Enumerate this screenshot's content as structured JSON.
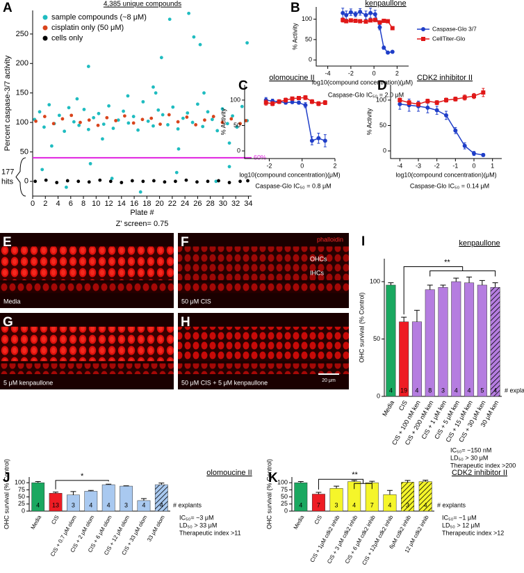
{
  "chart_data": [
    {
      "type": "scatter",
      "panel": "A",
      "title": "4,385 unique compounds",
      "xlabel": "Plate #",
      "ylabel": "Percent caspase-3/7 activity",
      "caption": "Z' screen= 0.75",
      "xlim": [
        0,
        34.5
      ],
      "xticks": [
        0,
        2,
        4,
        6,
        8,
        10,
        12,
        14,
        16,
        18,
        20,
        22,
        24,
        26,
        28,
        30,
        32,
        34
      ],
      "ylim": [
        -25,
        290
      ],
      "yticks": [
        0,
        50,
        100,
        150,
        200,
        250
      ],
      "threshold": 40,
      "threshold_color": "#e020e0",
      "threshold_label": "60%",
      "hits_count": "177",
      "hits_label": "hits",
      "legend": "upper left",
      "series": [
        {
          "name": "sample compounds (~8 μM)",
          "color": "#1fbcc0",
          "x": [
            0.3,
            1.1,
            1.8,
            2.6,
            3.4,
            4.2,
            5.0,
            5.7,
            6.5,
            7.3,
            8.1,
            8.8,
            9.6,
            10.4,
            11.2,
            12.0,
            12.7,
            13.5,
            14.3,
            15.1,
            15.9,
            16.6,
            17.4,
            18.2,
            19.0,
            19.8,
            20.5,
            21.3,
            22.1,
            22.9,
            23.7,
            24.4,
            25.2,
            26.0,
            26.8,
            27.6,
            28.3,
            29.1,
            29.9,
            30.7,
            31.5,
            32.2,
            33.0,
            33.8,
            8.8,
            19.4,
            20.3,
            21.6,
            24.6,
            25.4,
            26.4,
            33.8,
            1.5,
            5.3,
            9.1,
            12.5,
            17.0,
            22.7,
            28.9,
            31.0,
            3.0,
            7.0,
            11.0,
            15.0,
            19.0,
            23.0,
            27.0,
            31.0
          ],
          "values": [
            105,
            118,
            92,
            130,
            98,
            112,
            85,
            125,
            101,
            95,
            122,
            88,
            108,
            115,
            97,
            128,
            90,
            104,
            119,
            99,
            110,
            87,
            135,
            102,
            94,
            121,
            113,
            96,
            126,
            89,
            107,
            116,
            100,
            131,
            93,
            118,
            105,
            86,
            123,
            98,
            111,
            92,
            127,
            103,
            195,
            150,
            210,
            275,
            285,
            245,
            232,
            235,
            20,
            -10,
            30,
            5,
            -18,
            15,
            0,
            25,
            60,
            140,
            72,
            145,
            160,
            55,
            150,
            65
          ]
        },
        {
          "name": "cisplatin only (50 μM)",
          "color": "#d9441c",
          "x": [
            0.5,
            1.9,
            3.3,
            4.7,
            6.1,
            7.5,
            8.9,
            10.3,
            11.7,
            13.1,
            14.5,
            15.9,
            17.3,
            18.7,
            20.1,
            21.5,
            22.9,
            24.3,
            25.7,
            27.1,
            28.5,
            29.9,
            31.3,
            32.7,
            33.6
          ],
          "values": [
            102,
            110,
            98,
            106,
            112,
            100,
            104,
            95,
            108,
            103,
            111,
            99,
            105,
            107,
            97,
            113,
            101,
            109,
            96,
            104,
            110,
            100,
            106,
            98,
            103
          ]
        },
        {
          "name": "cells only",
          "color": "#000000",
          "x": [
            0.4,
            2.1,
            3.8,
            5.5,
            7.2,
            8.9,
            10.6,
            12.3,
            14.0,
            15.7,
            17.4,
            19.1,
            20.8,
            22.5,
            24.2,
            25.9,
            27.6,
            29.3,
            31.0,
            32.7,
            33.9
          ],
          "values": [
            0,
            2,
            -2,
            1,
            0,
            -1,
            2,
            0,
            -2,
            1,
            0,
            1,
            -1,
            0,
            2,
            -1,
            0,
            1,
            -2,
            0,
            1
          ]
        }
      ]
    },
    {
      "type": "dose",
      "panel": "B",
      "title": "kenpaullone",
      "xlabel": "log10(compound concentration)(μM)",
      "ylabel": "% Activity",
      "caption": "Caspase-Glo IC₅₀ = 2.0 μM",
      "xlim": [
        -5,
        3
      ],
      "xticks": [
        -4,
        -2,
        0,
        2
      ],
      "ylim": [
        -15,
        130
      ],
      "yticks": [
        0,
        50,
        100
      ],
      "legend": "right",
      "series": [
        {
          "name": "Caspase-Glo 3/7",
          "color": "#1f3ec8",
          "marker": "circle",
          "x": [
            -2.7,
            -2.4,
            -2.0,
            -1.6,
            -1.2,
            -0.7,
            -0.3,
            0.1,
            0.5,
            0.85,
            1.2,
            1.6
          ],
          "values": [
            115,
            110,
            117,
            112,
            118,
            110,
            115,
            112,
            80,
            30,
            18,
            20
          ],
          "errors": [
            12,
            10,
            8,
            6,
            8,
            10,
            12,
            10,
            6,
            4,
            3,
            2
          ]
        },
        {
          "name": "CellTiter-Glo",
          "color": "#e01818",
          "marker": "square",
          "x": [
            -2.7,
            -2.4,
            -2.0,
            -1.6,
            -1.2,
            -0.7,
            -0.3,
            0.1,
            0.5,
            0.85,
            1.2,
            1.6
          ],
          "values": [
            98,
            95,
            97,
            96,
            95,
            94,
            97,
            98,
            92,
            96,
            95,
            78
          ],
          "errors": [
            5,
            4,
            3,
            3,
            4,
            3,
            3,
            4,
            4,
            3,
            3,
            3
          ]
        }
      ]
    },
    {
      "type": "dose",
      "panel": "C",
      "title": "olomoucine II",
      "xlabel": "log10(compound concentration)(μM)",
      "ylabel": "% Activity",
      "caption": "Caspase-Glo IC₅₀ = 0.8 μM",
      "xlim": [
        -3.5,
        2
      ],
      "xticks": [
        -2,
        0,
        2
      ],
      "ylim": [
        -15,
        130
      ],
      "yticks": [
        0,
        50,
        100
      ],
      "series": [
        {
          "name": "Caspase-Glo 3/7",
          "color": "#1f3ec8",
          "marker": "circle",
          "x": [
            -2.2,
            -1.8,
            -1.4,
            -1.0,
            -0.6,
            -0.2,
            0.2,
            0.6,
            1.0,
            1.4
          ],
          "values": [
            100,
            98,
            97,
            95,
            96,
            95,
            90,
            20,
            25,
            20
          ],
          "errors": [
            5,
            4,
            3,
            3,
            3,
            3,
            5,
            8,
            10,
            12
          ]
        },
        {
          "name": "CellTiter-Glo",
          "color": "#e01818",
          "marker": "square",
          "x": [
            -2.2,
            -1.8,
            -1.4,
            -1.0,
            -0.6,
            -0.2,
            0.2,
            0.6,
            1.0,
            1.4
          ],
          "values": [
            95,
            93,
            97,
            100,
            103,
            104,
            105,
            97,
            93,
            95
          ],
          "errors": [
            5,
            4,
            4,
            4,
            3,
            3,
            4,
            4,
            4,
            4
          ]
        }
      ]
    },
    {
      "type": "dose",
      "panel": "D",
      "title": "CDK2 inhibitor II",
      "xlabel": "log10(compound concentration)(μM)",
      "ylabel": "% Activity",
      "caption": "Caspase-Glo IC₅₀ = 0.14 μM",
      "xlim": [
        -4.5,
        1.5
      ],
      "xticks": [
        -4,
        -3,
        -2,
        -1,
        0,
        1
      ],
      "ylim": [
        -15,
        130
      ],
      "yticks": [
        0,
        50,
        100
      ],
      "series": [
        {
          "name": "Caspase-Glo 3/7",
          "color": "#1f3ec8",
          "marker": "circle",
          "x": [
            -4.0,
            -3.5,
            -3.0,
            -2.5,
            -2.0,
            -1.5,
            -1.0,
            -0.5,
            0.0,
            0.5
          ],
          "values": [
            92,
            90,
            88,
            85,
            80,
            70,
            40,
            10,
            -5,
            -8
          ],
          "errors": [
            10,
            12,
            10,
            10,
            8,
            8,
            6,
            6,
            4,
            3
          ]
        },
        {
          "name": "CellTiter-Glo",
          "color": "#e01818",
          "marker": "square",
          "x": [
            -4.0,
            -3.5,
            -3.0,
            -2.5,
            -2.0,
            -1.5,
            -1.0,
            -0.5,
            0.0,
            0.5
          ],
          "values": [
            100,
            95,
            92,
            98,
            95,
            100,
            102,
            105,
            108,
            115
          ],
          "errors": [
            4,
            4,
            4,
            4,
            4,
            4,
            4,
            5,
            5,
            8
          ]
        }
      ]
    },
    {
      "type": "bar",
      "panel": "I",
      "title": "kenpaullone",
      "ylabel": "OHC survival (% Control)",
      "n_label": "# explants",
      "significance": "**",
      "ylim": [
        0,
        120
      ],
      "yticks": [
        0,
        50,
        100
      ],
      "categories": [
        "Media",
        "CIS",
        "CIS + 100 nM ken",
        "CIS + 200 nM ken",
        "CIS + 1 μM ken",
        "CIS + 5 μM ken",
        "CIS + 15 μM ken",
        "CIS + 30 μM ken",
        "30 μM ken"
      ],
      "values": [
        97,
        65,
        65,
        93,
        95,
        100,
        99,
        97,
        95
      ],
      "errors": [
        2,
        4,
        10,
        4,
        2,
        3,
        5,
        4,
        4
      ],
      "n": [
        "4",
        "19",
        "4",
        "8",
        "3",
        "4",
        "4",
        "5",
        "4"
      ],
      "colors": [
        "#1aa860",
        "#ee1c24",
        "#b57de0",
        "#b57de0",
        "#b57de0",
        "#b57de0",
        "#b57de0",
        "#b57de0",
        "#b57de0"
      ],
      "hatched": [
        false,
        false,
        false,
        false,
        false,
        false,
        false,
        false,
        true
      ],
      "notes": [
        "IC₅₀= ~150 nM",
        "LD₅₀ > 30 μM",
        "Therapeutic index >200"
      ]
    },
    {
      "type": "bar",
      "panel": "J",
      "title": "olomoucine II",
      "ylabel": "OHC survival (% Control)",
      "n_label": "# explants",
      "significance": "*",
      "ylim": [
        0,
        120
      ],
      "yticks": [
        0,
        25,
        50,
        75,
        100
      ],
      "categories": [
        "Media",
        "CIS",
        "CIS + 0.7 μM olom",
        "CIS + 2 μM olom",
        "CIS + 6 μM olom",
        "CIS + 12 μM olom",
        "CIS + 33 μM olom",
        "33 μM olom"
      ],
      "values": [
        100,
        63,
        57,
        70,
        93,
        88,
        37,
        93
      ],
      "errors": [
        4,
        4,
        12,
        3,
        2,
        1,
        7,
        6
      ],
      "n": [
        "4",
        "13",
        "3",
        "4",
        "4",
        "3",
        "4",
        "4"
      ],
      "colors": [
        "#1aa860",
        "#ee1c24",
        "#a9c9f0",
        "#a9c9f0",
        "#a9c9f0",
        "#a9c9f0",
        "#a9c9f0",
        "#a9c9f0"
      ],
      "hatched": [
        false,
        false,
        false,
        false,
        false,
        false,
        false,
        true
      ],
      "notes": [
        "IC₅₀= ~3 μM",
        "LD₅₀ > 33 μM",
        "Therapeutic index >11"
      ]
    },
    {
      "type": "bar",
      "panel": "K",
      "title": "CDK2 inhibitor II",
      "ylabel": "OHC survival (% Control)",
      "n_label": "# explants",
      "significance": "**",
      "ylim": [
        0,
        120
      ],
      "yticks": [
        0,
        25,
        50,
        75,
        100
      ],
      "categories": [
        "Media",
        "CIS",
        "CIS + 1μM cdk2 inhib",
        "CIS + 3 μM cdk2 inhib",
        "CIS + 6 μM cdk2 inhib",
        "CIS + 12μM cdk2 inhib",
        "6μM cdk2 inhib",
        "12 μM cdk2 inhib"
      ],
      "values": [
        100,
        60,
        80,
        104,
        100,
        58,
        102,
        104
      ],
      "errors": [
        4,
        6,
        8,
        4,
        5,
        15,
        6,
        5
      ],
      "n": [
        "4",
        "7",
        "3",
        "4",
        "7",
        "4",
        "3",
        "4"
      ],
      "colors": [
        "#1aa860",
        "#ee1c24",
        "#f5f52a",
        "#f5f52a",
        "#f5f52a",
        "#f5f52a",
        "#f5f52a",
        "#f5f52a"
      ],
      "hatched": [
        false,
        false,
        false,
        false,
        false,
        false,
        true,
        true
      ],
      "notes": [
        "IC₅₀= ~1 μM",
        "LD₅₀ > 12 μM",
        "Therapeutic index >12"
      ]
    }
  ],
  "images": [
    {
      "panel": "E",
      "label": "Media"
    },
    {
      "panel": "F",
      "label": "50 μM CIS",
      "stain": "phalloidin",
      "outer": "OHCs",
      "inner": "IHCs"
    },
    {
      "panel": "G",
      "label": "5 μM kenpaullone"
    },
    {
      "panel": "H",
      "label": "50 μM CIS  + 5 μM kenpaullone",
      "scale_bar": "20 μm"
    }
  ]
}
